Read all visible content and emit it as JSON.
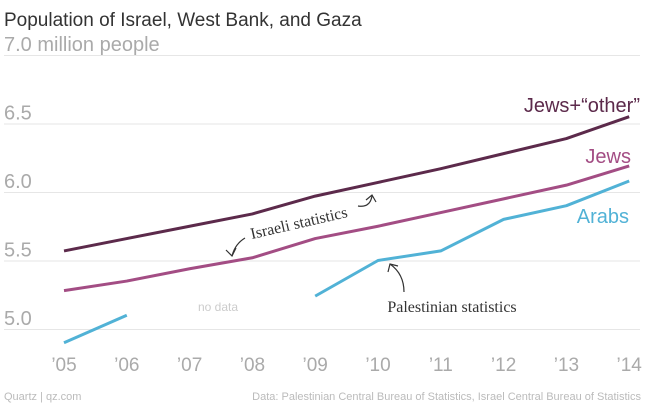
{
  "chart_data": {
    "type": "line",
    "title": "Population of Israel, West Bank, and Gaza",
    "ylabel_top": "7.0 million people",
    "ylim": [
      4.8,
      7.0
    ],
    "yticks": [
      {
        "value": 5.0,
        "label": "5.0"
      },
      {
        "value": 5.5,
        "label": "5.5"
      },
      {
        "value": 6.0,
        "label": "6.0"
      },
      {
        "value": 6.5,
        "label": "6.5"
      },
      {
        "value": 7.0,
        "label": "7.0 million people"
      }
    ],
    "x": [
      2005,
      2006,
      2007,
      2008,
      2009,
      2010,
      2011,
      2012,
      2013,
      2014
    ],
    "xtick_labels": [
      "’05",
      "’06",
      "’07",
      "’08",
      "’09",
      "’10",
      "’11",
      "’12",
      "’13",
      "’14"
    ],
    "series": [
      {
        "name": "Jews+“other”",
        "color": "#5c2a4b",
        "values": [
          5.57,
          5.66,
          5.75,
          5.84,
          5.97,
          6.07,
          6.17,
          6.28,
          6.39,
          6.55
        ]
      },
      {
        "name": "Jews",
        "color": "#a34d84",
        "values": [
          5.28,
          5.35,
          5.44,
          5.52,
          5.66,
          5.75,
          5.85,
          5.95,
          6.05,
          6.19
        ]
      },
      {
        "name": "Arabs",
        "color": "#51b2d6",
        "values": [
          4.9,
          5.1,
          null,
          null,
          5.24,
          5.5,
          5.57,
          5.8,
          5.9,
          6.08
        ]
      }
    ],
    "annotations": {
      "israeli": "Israeli statistics",
      "palestinian": "Palestinian statistics",
      "no_data": "no data"
    }
  },
  "footer": {
    "source_left": "Quartz | qz.com",
    "source_right": "Data: Palestinian Central Bureau of Statistics, Israel Central Bureau of Statistics"
  }
}
